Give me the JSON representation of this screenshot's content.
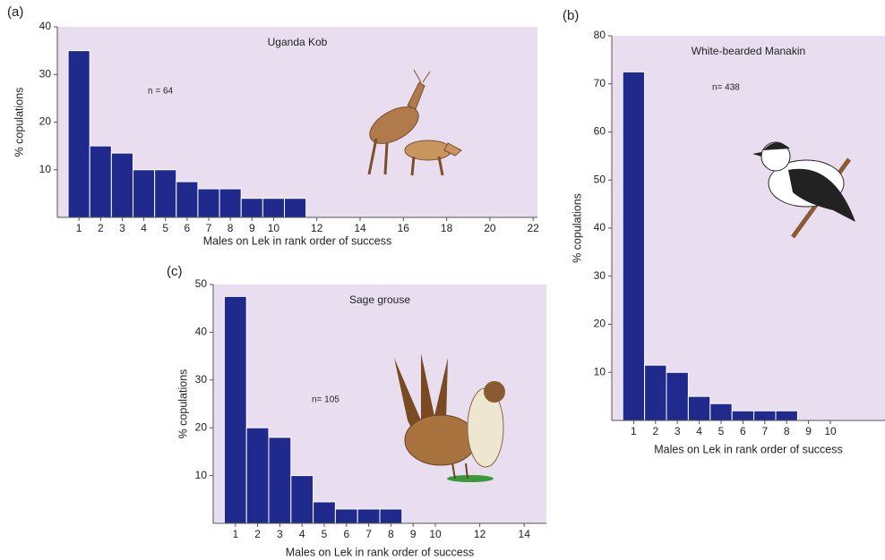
{
  "chart_data": [
    {
      "type": "bar",
      "panel": "(a)",
      "title": "Uganda Kob",
      "annotation": "n = 64",
      "x_label": "Males on Lek in rank order of success",
      "y_label": "% copulations",
      "x": [
        1,
        2,
        3,
        4,
        5,
        6,
        7,
        8,
        9,
        10,
        11
      ],
      "values": [
        35,
        15,
        13.5,
        10,
        10,
        7.5,
        6,
        6,
        4,
        4,
        4
      ],
      "color": "#1f2a8c",
      "xlim": [
        0,
        22.2
      ],
      "xticks": [
        1,
        2,
        3,
        4,
        5,
        6,
        7,
        8,
        9,
        10,
        12,
        14,
        16,
        18,
        20,
        22
      ],
      "ylim": [
        0,
        40
      ],
      "yticks": [
        10,
        20,
        30,
        40
      ]
    },
    {
      "type": "bar",
      "panel": "(b)",
      "title": "White-bearded Manakin",
      "annotation": "n= 438",
      "x_label": "Males on Lek in rank order of success",
      "y_label": "% copulations",
      "x": [
        1,
        2,
        3,
        4,
        5,
        6,
        7,
        8
      ],
      "values": [
        72.5,
        11.5,
        10,
        5,
        3.5,
        2,
        2,
        2
      ],
      "color": "#1f2a8c",
      "xlim": [
        0,
        12.5
      ],
      "xticks": [
        1,
        2,
        3,
        4,
        5,
        6,
        7,
        8,
        9,
        10
      ],
      "ylim": [
        0,
        80
      ],
      "yticks": [
        10,
        20,
        30,
        40,
        50,
        60,
        70,
        80
      ]
    },
    {
      "type": "bar",
      "panel": "(c)",
      "title": "Sage grouse",
      "annotation": "n= 105",
      "x_label": "Males on Lek in rank order of success",
      "y_label": "% copulations",
      "x": [
        1,
        2,
        3,
        4,
        5,
        6,
        7,
        8
      ],
      "values": [
        47.5,
        20,
        18,
        10,
        4.5,
        3,
        3,
        3
      ],
      "color": "#1f2a8c",
      "xlim": [
        0,
        15
      ],
      "xticks": [
        1,
        2,
        3,
        4,
        5,
        6,
        7,
        8,
        9,
        10,
        12,
        14
      ],
      "ylim": [
        0,
        50
      ],
      "yticks": [
        10,
        20,
        30,
        40,
        50
      ]
    }
  ]
}
